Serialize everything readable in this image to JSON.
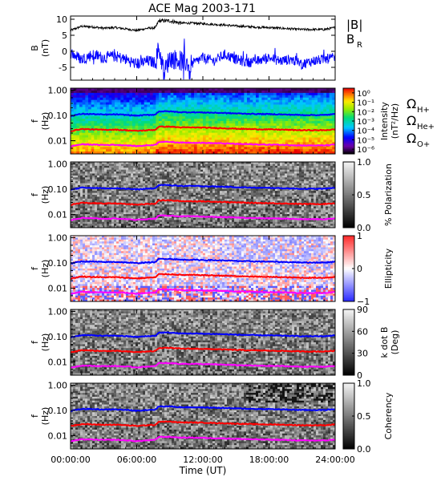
{
  "title": "ACE Mag 2003-171",
  "xaxis": {
    "label": "Time (UT)",
    "ticks": [
      "00:00:00",
      "06:00:00",
      "12:00:00",
      "18:00:00",
      "24:00:00"
    ],
    "tick_hours": [
      0,
      6,
      12,
      18,
      24
    ],
    "range_hours": [
      0,
      24
    ]
  },
  "colors": {
    "B_total": "#000000",
    "B_R": "#0000ff",
    "H_plus": "#0000ff",
    "He_plus": "#ff0000",
    "O_plus": "#ff00ff",
    "background": "#ffffff"
  },
  "chart_data": [
    {
      "type": "line",
      "ylabel": [
        "B",
        "(nT)"
      ],
      "ylim": [
        -9,
        11
      ],
      "yticks": [
        "10",
        "5",
        "0",
        "-5"
      ],
      "ytick_values": [
        10,
        5,
        0,
        -5
      ],
      "legend": [
        "|B|",
        "B_R"
      ],
      "legend_text": {
        "B_total": "|B|",
        "B_R_main": "B",
        "B_R_sub": "R"
      },
      "series": [
        {
          "name": "|B|",
          "color": "#000000",
          "x": [
            0,
            1,
            2,
            3,
            4,
            5,
            6,
            7,
            7.7,
            8,
            9,
            10,
            11,
            12,
            13,
            14,
            15,
            16,
            17,
            18,
            19,
            20,
            21,
            22,
            23,
            24
          ],
          "y": [
            6.5,
            7.8,
            7.6,
            7.2,
            7.4,
            7.0,
            6.5,
            7.2,
            7.3,
            9.5,
            9.5,
            8.8,
            8.8,
            8.6,
            8.4,
            8.2,
            7.9,
            7.7,
            7.5,
            7.4,
            7.2,
            7.0,
            6.8,
            6.8,
            6.8,
            7.4
          ]
        },
        {
          "name": "B_R",
          "color": "#0000ff",
          "x": [
            0,
            1,
            2,
            3,
            4,
            5,
            6,
            7,
            7.7,
            8,
            8.5,
            9,
            10,
            11,
            12,
            13,
            14,
            15,
            16,
            17,
            18,
            19,
            20,
            21,
            22,
            23,
            24
          ],
          "y": [
            -0.5,
            -2.5,
            -1.0,
            -2.0,
            -1.5,
            -2.5,
            -4.0,
            -3.0,
            -3.5,
            1.0,
            -6.5,
            -2.0,
            -3.0,
            -4.0,
            -2.0,
            -3.0,
            -1.0,
            -2.5,
            -3.5,
            -3.0,
            -2.0,
            -3.0,
            -2.5,
            -4.0,
            -3.0,
            -2.5,
            -2.0
          ]
        }
      ]
    },
    {
      "type": "heatmap",
      "ylabel": [
        "f",
        "(Hz)"
      ],
      "yscale": "log",
      "ylim": [
        0.003,
        1.2
      ],
      "yticks": [
        "1.00",
        "0.10",
        "0.01"
      ],
      "ytick_values": [
        1.0,
        0.1,
        0.01
      ],
      "colorbar": {
        "scheme": "rainbow",
        "label": [
          "Intensity",
          "(nT²/Hz)"
        ],
        "ticks": [
          "10⁰",
          "10⁻¹",
          "10⁻²",
          "10⁻³",
          "10⁻⁴",
          "10⁻⁵",
          "10⁻⁶"
        ],
        "tick_exponents": [
          0,
          -1,
          -2,
          -3,
          -4,
          -5,
          -6
        ],
        "range": [
          -6.5,
          0.5
        ]
      },
      "side_legend": [
        {
          "main": "Ω",
          "sub": "H+",
          "color": "#0000ff"
        },
        {
          "main": "Ω",
          "sub": "He+",
          "color": "#ff0000"
        },
        {
          "main": "Ω",
          "sub": "O+",
          "color": "#ff00ff"
        }
      ]
    },
    {
      "type": "heatmap",
      "ylabel": [
        "f",
        "(Hz)"
      ],
      "yscale": "log",
      "ylim": [
        0.003,
        1.2
      ],
      "yticks": [
        "1.00",
        "0.10",
        "0.01"
      ],
      "ytick_values": [
        1.0,
        0.1,
        0.01
      ],
      "colorbar": {
        "scheme": "gray",
        "label": [
          "% Polarization"
        ],
        "ticks": [
          "1.0",
          "0.5",
          "0.0"
        ],
        "tick_values": [
          1.0,
          0.5,
          0.0
        ],
        "range": [
          0,
          1
        ]
      }
    },
    {
      "type": "heatmap",
      "ylabel": [
        "f",
        "(Hz)"
      ],
      "yscale": "log",
      "ylim": [
        0.003,
        1.2
      ],
      "yticks": [
        "1.00",
        "0.10",
        "0.01"
      ],
      "ytick_values": [
        1.0,
        0.1,
        0.01
      ],
      "colorbar": {
        "scheme": "bluewhitered",
        "label": [
          "Ellipticity"
        ],
        "ticks": [
          "1",
          "0",
          "−1"
        ],
        "tick_values": [
          1,
          0,
          -1
        ],
        "range": [
          -1,
          1
        ]
      }
    },
    {
      "type": "heatmap",
      "ylabel": [
        "f",
        "(Hz)"
      ],
      "yscale": "log",
      "ylim": [
        0.003,
        1.2
      ],
      "yticks": [
        "1.00",
        "0.10",
        "0.01"
      ],
      "ytick_values": [
        1.0,
        0.1,
        0.01
      ],
      "colorbar": {
        "scheme": "gray",
        "label": [
          "k dot B",
          "(Deg)"
        ],
        "ticks": [
          "90",
          "60",
          "30",
          "0"
        ],
        "tick_values": [
          90,
          60,
          30,
          0
        ],
        "range": [
          0,
          90
        ]
      }
    },
    {
      "type": "heatmap",
      "ylabel": [
        "f",
        "(Hz)"
      ],
      "yscale": "log",
      "ylim": [
        0.003,
        1.2
      ],
      "yticks": [
        "1.00",
        "0.10",
        "0.01"
      ],
      "ytick_values": [
        1.0,
        0.1,
        0.01
      ],
      "colorbar": {
        "scheme": "gray",
        "label": [
          "Coherency"
        ],
        "ticks": [
          "1.0",
          "0.5",
          "0.0"
        ],
        "tick_values": [
          1.0,
          0.5,
          0.0
        ],
        "range": [
          0,
          1
        ]
      }
    }
  ],
  "gyrofrequency_lines": {
    "x_hours": [
      0,
      1,
      2,
      3,
      4,
      5,
      6,
      7,
      7.7,
      8,
      9,
      10,
      11,
      12,
      13,
      14,
      15,
      16,
      17,
      18,
      19,
      20,
      21,
      22,
      23,
      24
    ],
    "H_plus_hz": [
      0.095,
      0.115,
      0.113,
      0.108,
      0.11,
      0.105,
      0.098,
      0.105,
      0.108,
      0.145,
      0.145,
      0.134,
      0.134,
      0.131,
      0.128,
      0.125,
      0.12,
      0.117,
      0.114,
      0.113,
      0.11,
      0.107,
      0.104,
      0.104,
      0.104,
      0.113
    ],
    "He_plus_hz": [
      0.024,
      0.029,
      0.028,
      0.027,
      0.0275,
      0.026,
      0.0245,
      0.026,
      0.027,
      0.036,
      0.036,
      0.0335,
      0.0335,
      0.033,
      0.032,
      0.031,
      0.03,
      0.029,
      0.0285,
      0.028,
      0.0275,
      0.0267,
      0.026,
      0.026,
      0.026,
      0.028
    ],
    "O_plus_hz": [
      0.006,
      0.0072,
      0.007,
      0.0068,
      0.0069,
      0.0066,
      0.0061,
      0.0066,
      0.0068,
      0.009,
      0.009,
      0.0084,
      0.0084,
      0.0082,
      0.008,
      0.0078,
      0.0075,
      0.0073,
      0.0071,
      0.007,
      0.0069,
      0.0067,
      0.0065,
      0.0065,
      0.0065,
      0.007
    ]
  }
}
